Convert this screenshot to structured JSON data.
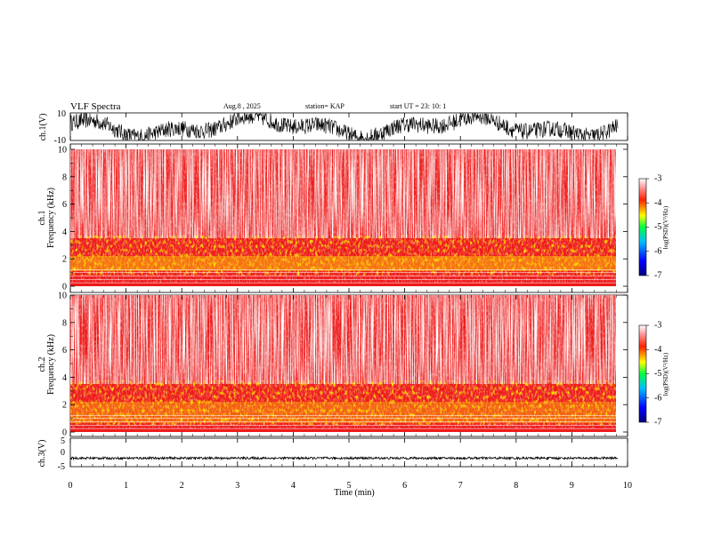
{
  "header": {
    "title": "VLF Spectra",
    "date": "Aug.8  , 2025",
    "station": "station= KAP",
    "start": "start  UT  =   23: 10: 1"
  },
  "colors": {
    "accent": "#e01010",
    "grid": "#000000"
  },
  "chart_data": [
    {
      "type": "line",
      "id": "ch1",
      "ylabel": "ch.1(V)",
      "ylim": [
        -10,
        10
      ],
      "yticks": [
        "10",
        "-10"
      ],
      "xlim": [
        0,
        10
      ],
      "description_series": "waveform voltage vs time",
      "series": [
        {
          "name": "ch.1",
          "amplitude_range": [
            -10,
            10
          ]
        }
      ]
    },
    {
      "type": "heatmap",
      "id": "ch1_spec",
      "ylabel": "ch.1\nFrequency (kHz)",
      "ylabel_line1": "ch.1",
      "ylabel_line2": "Frequency  (kHz)",
      "ylim": [
        0,
        10
      ],
      "yticks": [
        "0",
        "2",
        "4",
        "6",
        "8",
        "10"
      ],
      "xlim": [
        0,
        9.83
      ],
      "colorbar": {
        "label": "log(PSD)(V²/Hz)",
        "range": [
          -7,
          -3
        ],
        "ticks": [
          "-3",
          "-4",
          "-5",
          "-6",
          "-7"
        ]
      }
    },
    {
      "type": "heatmap",
      "id": "ch2_spec",
      "ylabel_line1": "ch.2",
      "ylabel_line2": "Frequency  (kHz)",
      "ylim": [
        0,
        10
      ],
      "yticks": [
        "0",
        "2",
        "4",
        "6",
        "8",
        "10"
      ],
      "xlim": [
        0,
        9.83
      ],
      "colorbar": {
        "label": "log(PSD)(V²/Hz)",
        "range": [
          -7,
          -3
        ],
        "ticks": [
          "-3",
          "-4",
          "-5",
          "-6",
          "-7"
        ]
      }
    },
    {
      "type": "line",
      "id": "ch3",
      "ylabel": "ch.3(V)",
      "ylim": [
        -5,
        5
      ],
      "yticks": [
        "5",
        "0",
        "-5"
      ],
      "xlim": [
        0,
        10
      ],
      "series": [
        {
          "name": "ch.3",
          "mean": -2,
          "amplitude": 0.4
        }
      ]
    }
  ],
  "xaxis": {
    "label": "Time  (min)",
    "ticks": [
      "0",
      "1",
      "2",
      "3",
      "4",
      "5",
      "6",
      "7",
      "8",
      "9",
      "10"
    ],
    "range": [
      0,
      10
    ]
  }
}
